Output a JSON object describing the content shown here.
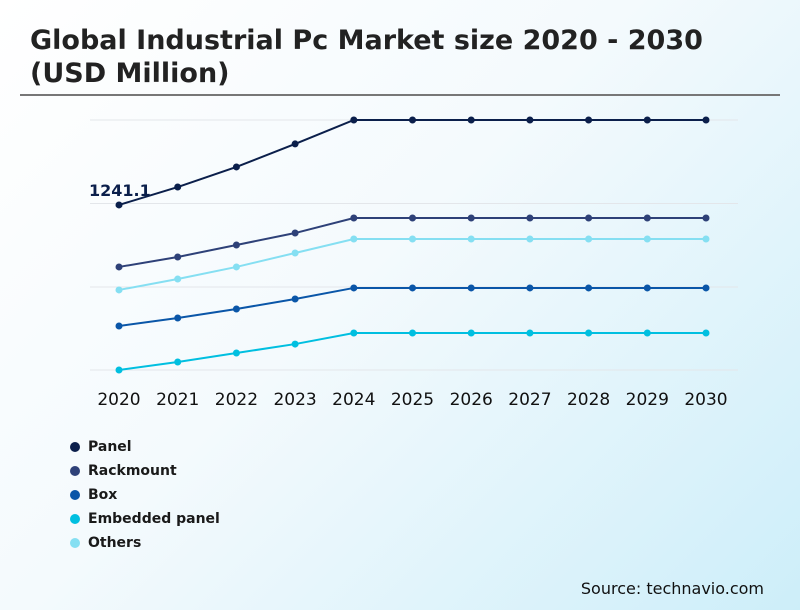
{
  "chart_data": {
    "type": "line",
    "title": "Global Industrial Pc Market size 2020 - 2030 (USD Million)",
    "x": [
      "2020",
      "2021",
      "2022",
      "2023",
      "2024",
      "2025",
      "2026",
      "2027",
      "2028",
      "2029",
      "2030"
    ],
    "ylim": [
      0,
      1880
    ],
    "grid": true,
    "legend_placement": "bottom-left",
    "annotations": [
      {
        "series": "Panel",
        "x": "2020",
        "label": "1241.1"
      }
    ],
    "series": [
      {
        "name": "Panel",
        "color": "#0b1f4b",
        "values": [
          1241.1,
          1376,
          1527,
          1700,
          1880,
          1880,
          1880,
          1880,
          1880,
          1880,
          1880
        ]
      },
      {
        "name": "Rackmount",
        "color": "#2e4178",
        "values": [
          775,
          850,
          940,
          1030,
          1143,
          1143,
          1143,
          1143,
          1143,
          1143,
          1143
        ]
      },
      {
        "name": "Box",
        "color": "#0a56a8",
        "values": [
          331,
          391,
          459,
          534,
          617,
          617,
          617,
          617,
          617,
          617,
          617
        ]
      },
      {
        "name": "Embedded panel",
        "color": "#00bfe0",
        "values": [
          0,
          60,
          128,
          195,
          278,
          278,
          278,
          278,
          278,
          278,
          278
        ]
      },
      {
        "name": "Others",
        "color": "#85dff2",
        "values": [
          602,
          684,
          775,
          880,
          985,
          985,
          985,
          985,
          985,
          985,
          985
        ]
      }
    ]
  },
  "source": "Source: technavio.com"
}
